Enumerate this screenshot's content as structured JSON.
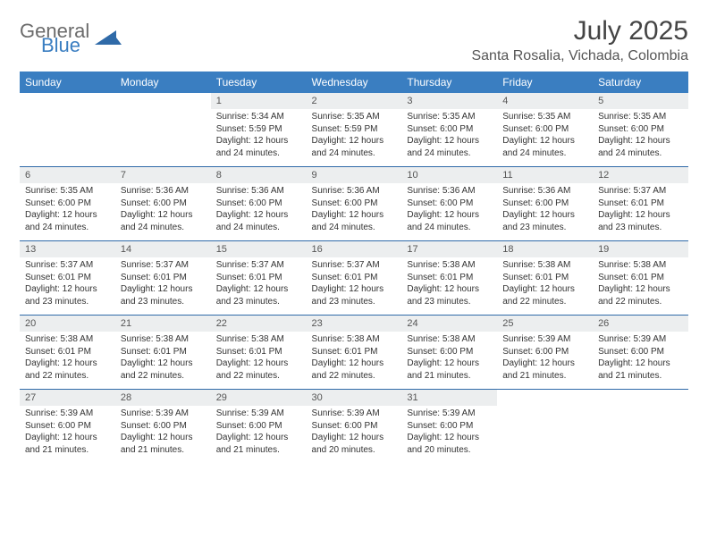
{
  "logo": {
    "general": "General",
    "blue": "Blue"
  },
  "title": "July 2025",
  "location": "Santa Rosalia, Vichada, Colombia",
  "colors": {
    "header_bg": "#3a7ec1",
    "row_sep": "#2f6aa8",
    "daynum_bg": "#eceeef",
    "text": "#333333",
    "title_text": "#444444"
  },
  "day_headers": [
    "Sunday",
    "Monday",
    "Tuesday",
    "Wednesday",
    "Thursday",
    "Friday",
    "Saturday"
  ],
  "weeks": [
    [
      null,
      null,
      {
        "n": "1",
        "sr": "5:34 AM",
        "ss": "5:59 PM",
        "dl": "12 hours and 24 minutes."
      },
      {
        "n": "2",
        "sr": "5:35 AM",
        "ss": "5:59 PM",
        "dl": "12 hours and 24 minutes."
      },
      {
        "n": "3",
        "sr": "5:35 AM",
        "ss": "6:00 PM",
        "dl": "12 hours and 24 minutes."
      },
      {
        "n": "4",
        "sr": "5:35 AM",
        "ss": "6:00 PM",
        "dl": "12 hours and 24 minutes."
      },
      {
        "n": "5",
        "sr": "5:35 AM",
        "ss": "6:00 PM",
        "dl": "12 hours and 24 minutes."
      }
    ],
    [
      {
        "n": "6",
        "sr": "5:35 AM",
        "ss": "6:00 PM",
        "dl": "12 hours and 24 minutes."
      },
      {
        "n": "7",
        "sr": "5:36 AM",
        "ss": "6:00 PM",
        "dl": "12 hours and 24 minutes."
      },
      {
        "n": "8",
        "sr": "5:36 AM",
        "ss": "6:00 PM",
        "dl": "12 hours and 24 minutes."
      },
      {
        "n": "9",
        "sr": "5:36 AM",
        "ss": "6:00 PM",
        "dl": "12 hours and 24 minutes."
      },
      {
        "n": "10",
        "sr": "5:36 AM",
        "ss": "6:00 PM",
        "dl": "12 hours and 24 minutes."
      },
      {
        "n": "11",
        "sr": "5:36 AM",
        "ss": "6:00 PM",
        "dl": "12 hours and 23 minutes."
      },
      {
        "n": "12",
        "sr": "5:37 AM",
        "ss": "6:01 PM",
        "dl": "12 hours and 23 minutes."
      }
    ],
    [
      {
        "n": "13",
        "sr": "5:37 AM",
        "ss": "6:01 PM",
        "dl": "12 hours and 23 minutes."
      },
      {
        "n": "14",
        "sr": "5:37 AM",
        "ss": "6:01 PM",
        "dl": "12 hours and 23 minutes."
      },
      {
        "n": "15",
        "sr": "5:37 AM",
        "ss": "6:01 PM",
        "dl": "12 hours and 23 minutes."
      },
      {
        "n": "16",
        "sr": "5:37 AM",
        "ss": "6:01 PM",
        "dl": "12 hours and 23 minutes."
      },
      {
        "n": "17",
        "sr": "5:38 AM",
        "ss": "6:01 PM",
        "dl": "12 hours and 23 minutes."
      },
      {
        "n": "18",
        "sr": "5:38 AM",
        "ss": "6:01 PM",
        "dl": "12 hours and 22 minutes."
      },
      {
        "n": "19",
        "sr": "5:38 AM",
        "ss": "6:01 PM",
        "dl": "12 hours and 22 minutes."
      }
    ],
    [
      {
        "n": "20",
        "sr": "5:38 AM",
        "ss": "6:01 PM",
        "dl": "12 hours and 22 minutes."
      },
      {
        "n": "21",
        "sr": "5:38 AM",
        "ss": "6:01 PM",
        "dl": "12 hours and 22 minutes."
      },
      {
        "n": "22",
        "sr": "5:38 AM",
        "ss": "6:01 PM",
        "dl": "12 hours and 22 minutes."
      },
      {
        "n": "23",
        "sr": "5:38 AM",
        "ss": "6:01 PM",
        "dl": "12 hours and 22 minutes."
      },
      {
        "n": "24",
        "sr": "5:38 AM",
        "ss": "6:00 PM",
        "dl": "12 hours and 21 minutes."
      },
      {
        "n": "25",
        "sr": "5:39 AM",
        "ss": "6:00 PM",
        "dl": "12 hours and 21 minutes."
      },
      {
        "n": "26",
        "sr": "5:39 AM",
        "ss": "6:00 PM",
        "dl": "12 hours and 21 minutes."
      }
    ],
    [
      {
        "n": "27",
        "sr": "5:39 AM",
        "ss": "6:00 PM",
        "dl": "12 hours and 21 minutes."
      },
      {
        "n": "28",
        "sr": "5:39 AM",
        "ss": "6:00 PM",
        "dl": "12 hours and 21 minutes."
      },
      {
        "n": "29",
        "sr": "5:39 AM",
        "ss": "6:00 PM",
        "dl": "12 hours and 21 minutes."
      },
      {
        "n": "30",
        "sr": "5:39 AM",
        "ss": "6:00 PM",
        "dl": "12 hours and 20 minutes."
      },
      {
        "n": "31",
        "sr": "5:39 AM",
        "ss": "6:00 PM",
        "dl": "12 hours and 20 minutes."
      },
      null,
      null
    ]
  ],
  "labels": {
    "sunrise": "Sunrise: ",
    "sunset": "Sunset: ",
    "daylight": "Daylight: "
  }
}
